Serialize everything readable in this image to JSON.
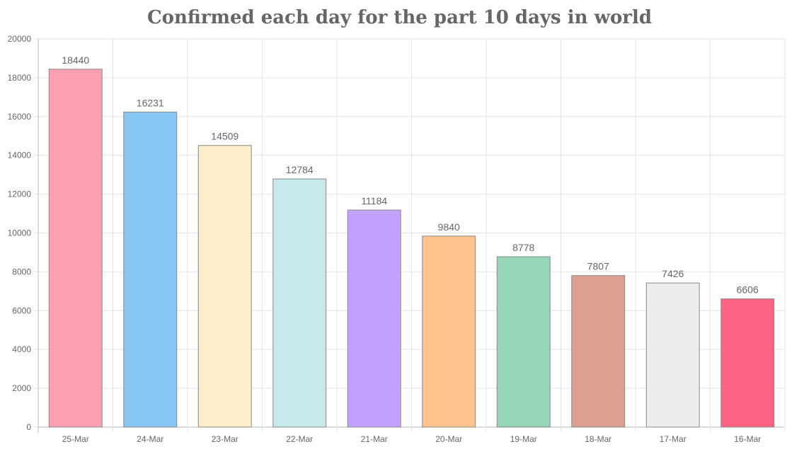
{
  "chart_data": {
    "type": "bar",
    "title": "Confirmed each day for the part 10 days in world",
    "xlabel": "",
    "ylabel": "",
    "categories": [
      "25-Mar",
      "24-Mar",
      "23-Mar",
      "22-Mar",
      "21-Mar",
      "20-Mar",
      "19-Mar",
      "18-Mar",
      "17-Mar",
      "16-Mar"
    ],
    "values": [
      18440,
      16231,
      14509,
      12784,
      11184,
      9840,
      8778,
      7807,
      7426,
      6606
    ],
    "data_labels": [
      "18440",
      "16231",
      "14509",
      "12784",
      "11184",
      "9840",
      "8778",
      "7807",
      "7426",
      "6606"
    ],
    "ylim": [
      0,
      20000
    ],
    "yticks": [
      0,
      2000,
      4000,
      6000,
      8000,
      10000,
      12000,
      14000,
      16000,
      18000,
      20000
    ],
    "ytick_labels": [
      "0",
      "2000",
      "4000",
      "6000",
      "8000",
      "10000",
      "12000",
      "14000",
      "16000",
      "18000",
      "20000"
    ],
    "grid": true,
    "legend": "none",
    "bar_colors": [
      "#ff9fb3",
      "#88c6f4",
      "#feeecb",
      "#c6eaeb",
      "#c3a2fe",
      "#fec48d",
      "#96d6b8",
      "#dc9f90",
      "#ececec",
      "#ff6384"
    ],
    "bar_border_color": "#888888"
  }
}
